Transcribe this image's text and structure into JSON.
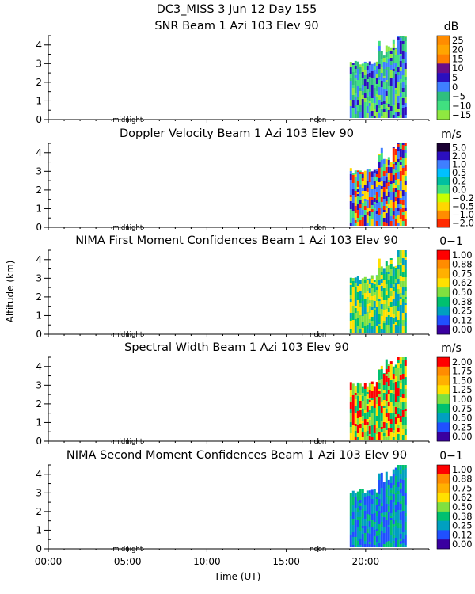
{
  "figure": {
    "title_line1": "DC3_MISS    3 Jun 12 Day 155",
    "y_axis_label": "Altitude (km)",
    "x_axis_label": "Time (UT)",
    "x_ticks": [
      "00:00",
      "05:00",
      "10:00",
      "15:00",
      "20:00"
    ],
    "midnight_label": "midnight",
    "noon_label": "noon"
  },
  "chart_data": [
    {
      "type": "heatmap",
      "title": "SNR Beam 1 Azi 103 Elev 90",
      "xlabel": "",
      "ylabel": "",
      "xlim_hours_ut": [
        0,
        24
      ],
      "ylim_km": [
        0,
        4.5
      ],
      "y_ticks": [
        0,
        1,
        2,
        3,
        4
      ],
      "colorbar_unit": "dB",
      "colorbar_labels": [
        "25",
        "20",
        "15",
        "10",
        "5",
        "0",
        "−5",
        "−10",
        "−15"
      ],
      "colorbar_colors": [
        "#ff8c00",
        "#ffa500",
        "#ff7f00",
        "#6a0d8a",
        "#2b0fbf",
        "#3f7fff",
        "#2fbf7f",
        "#40e080",
        "#8fe840"
      ],
      "data_time_range_ut": [
        "19:00",
        "22:30"
      ],
      "dominant_colors": [
        "#8fe840",
        "#40e080",
        "#2fbf7f",
        "#3f7fff",
        "#2b0fbf"
      ]
    },
    {
      "type": "heatmap",
      "title": "Doppler Velocity Beam 1 Azi 103 Elev 90",
      "xlabel": "",
      "ylabel": "",
      "xlim_hours_ut": [
        0,
        24
      ],
      "ylim_km": [
        0,
        4.5
      ],
      "y_ticks": [
        0,
        1,
        2,
        3,
        4
      ],
      "colorbar_unit": "m/s",
      "colorbar_labels": [
        "5.0",
        "2.0",
        "1.0",
        "0.5",
        "0.2",
        "0.0",
        "−0.2",
        "−0.5",
        "−1.0",
        "−2.0"
      ],
      "colorbar_colors": [
        "#1a0033",
        "#2b0fbf",
        "#3f7fff",
        "#00c0ff",
        "#00c0a0",
        "#40e080",
        "#c8ff00",
        "#ffd700",
        "#ff8c00",
        "#ff2a00"
      ],
      "data_time_range_ut": [
        "19:00",
        "22:30"
      ],
      "dominant_colors": [
        "#ff2a00",
        "#ffd700",
        "#40e080",
        "#3f7fff",
        "#2b0fbf"
      ]
    },
    {
      "type": "heatmap",
      "title": "NIMA First Moment Confidences Beam 1 Azi 103 Elev 90",
      "xlabel": "",
      "ylabel": "",
      "xlim_hours_ut": [
        0,
        24
      ],
      "ylim_km": [
        0,
        4.5
      ],
      "y_ticks": [
        0,
        1,
        2,
        3,
        4
      ],
      "colorbar_unit": "0−1",
      "colorbar_labels": [
        "1.00",
        "0.88",
        "0.75",
        "0.62",
        "0.50",
        "0.38",
        "0.25",
        "0.12",
        "0.00"
      ],
      "colorbar_colors": [
        "#ff0000",
        "#ff8c00",
        "#ffb000",
        "#ffe000",
        "#80e040",
        "#00c070",
        "#00a0c0",
        "#2050ff",
        "#3a00a0"
      ],
      "data_time_range_ut": [
        "19:00",
        "22:30"
      ],
      "dominant_colors": [
        "#ffe000",
        "#80e040",
        "#00c070",
        "#00a0c0"
      ]
    },
    {
      "type": "heatmap",
      "title": "Spectral Width Beam 1 Azi 103 Elev 90",
      "xlabel": "",
      "ylabel": "",
      "xlim_hours_ut": [
        0,
        24
      ],
      "ylim_km": [
        0,
        4.5
      ],
      "y_ticks": [
        0,
        1,
        2,
        3,
        4
      ],
      "colorbar_unit": "m/s",
      "colorbar_labels": [
        "2.00",
        "1.75",
        "1.50",
        "1.25",
        "1.00",
        "0.75",
        "0.50",
        "0.25",
        "0.00"
      ],
      "colorbar_colors": [
        "#ff0000",
        "#ff8c00",
        "#ffb000",
        "#ffe000",
        "#80e040",
        "#00c070",
        "#00a0c0",
        "#2050ff",
        "#3a00a0"
      ],
      "data_time_range_ut": [
        "19:00",
        "22:30"
      ],
      "dominant_colors": [
        "#ff0000",
        "#ffe000",
        "#80e040",
        "#00c070"
      ]
    },
    {
      "type": "heatmap",
      "title": "NIMA Second Moment Confidences Beam 1 Azi 103 Elev 90",
      "xlabel": "",
      "ylabel": "",
      "xlim_hours_ut": [
        0,
        24
      ],
      "ylim_km": [
        0,
        4.5
      ],
      "y_ticks": [
        0,
        1,
        2,
        3,
        4
      ],
      "colorbar_unit": "0−1",
      "colorbar_labels": [
        "1.00",
        "0.88",
        "0.75",
        "0.62",
        "0.50",
        "0.38",
        "0.25",
        "0.12",
        "0.00"
      ],
      "colorbar_colors": [
        "#ff0000",
        "#ff8c00",
        "#ffb000",
        "#ffe000",
        "#80e040",
        "#00c070",
        "#00a0c0",
        "#2050ff",
        "#3a00a0"
      ],
      "data_time_range_ut": [
        "19:00",
        "22:30"
      ],
      "dominant_colors": [
        "#00a0c0",
        "#2050ff",
        "#00c070"
      ]
    }
  ]
}
